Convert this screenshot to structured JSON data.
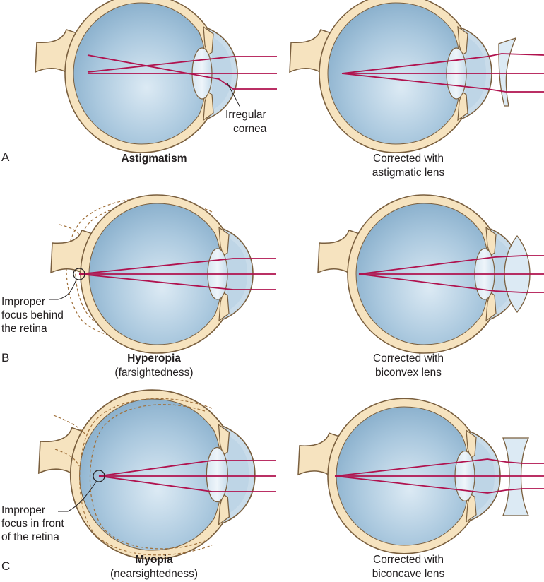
{
  "panels": {
    "a": {
      "letter": "A",
      "left_title": "Astigmatism",
      "left_note": [
        "Irregular",
        "cornea"
      ],
      "right_caption": [
        "Corrected with",
        "astigmatic lens"
      ]
    },
    "b": {
      "letter": "B",
      "left_title": "Hyperopia",
      "left_subtitle": "(farsightedness)",
      "left_note": [
        "Improper",
        "focus behind",
        "the retina"
      ],
      "right_caption": [
        "Corrected with",
        "biconvex lens"
      ]
    },
    "c": {
      "letter": "C",
      "left_title": "Myopia",
      "left_subtitle": "(nearsightedness)",
      "left_note": [
        "Improper",
        "focus in front",
        "of the retina"
      ],
      "right_caption": [
        "Corrected with",
        "biconcave lens"
      ]
    }
  },
  "colors": {
    "sclera_fill": "#f6e3bf",
    "sclera_stroke": "#7a5f3e",
    "vitreous": "#8fb6d2",
    "vitreous_light": "#d9e9f3",
    "ray": "#b0124e",
    "dashed": "#a0703a"
  }
}
